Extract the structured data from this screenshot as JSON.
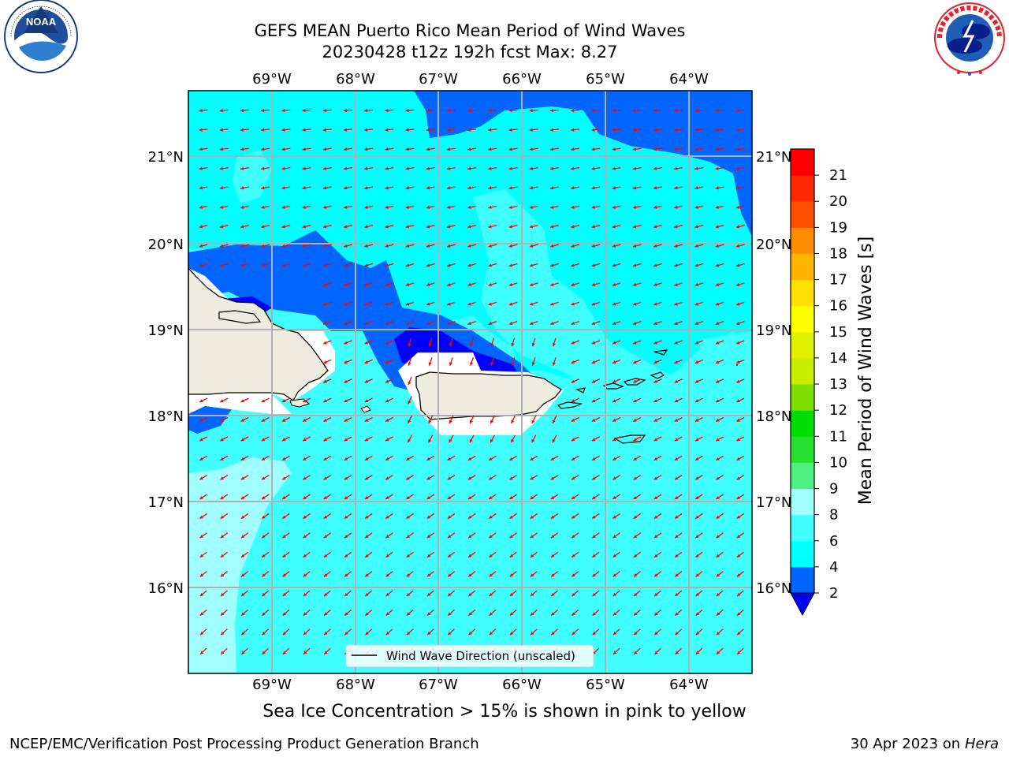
{
  "header": {
    "title_line1": "GEFS MEAN Puerto Rico Mean Period of Wind Waves",
    "title_line2": "20230428 t12z 192h fcst   Max: 8.27"
  },
  "map": {
    "lon_ticks": [
      "69°W",
      "68°W",
      "67°W",
      "66°W",
      "65°W",
      "64°W"
    ],
    "lat_ticks": [
      "21°N",
      "20°N",
      "19°N",
      "18°N",
      "17°N",
      "16°N"
    ],
    "legend_label": "Wind Wave Direction (unscaled)",
    "land_color": "#eeecde",
    "arrow_color": "#ff0000"
  },
  "colorbar": {
    "label": "Mean Period of Wind Waves [s]",
    "ticks": [
      "2",
      "4",
      "6",
      "8",
      "9",
      "10",
      "11",
      "12",
      "13",
      "14",
      "15",
      "16",
      "17",
      "18",
      "19",
      "20",
      "21"
    ],
    "colors": [
      "#0066ff",
      "#00ffff",
      "#40ffff",
      "#a0ffff",
      "#4cf080",
      "#28e030",
      "#00dd00",
      "#7ee000",
      "#c8ee00",
      "#e0f000",
      "#ffff00",
      "#ffe000",
      "#ffb400",
      "#ff8c00",
      "#ff5000",
      "#ff2800",
      "#ff0000"
    ],
    "extend_color": "#0000ff"
  },
  "footer": {
    "sea_ice_note": "Sea Ice Concentration > 15% is shown in pink to yellow",
    "credit": "NCEP/EMC/Verification Post Processing Product Generation Branch",
    "date_text": "30 Apr 2023 on ",
    "machine": "Hera"
  }
}
